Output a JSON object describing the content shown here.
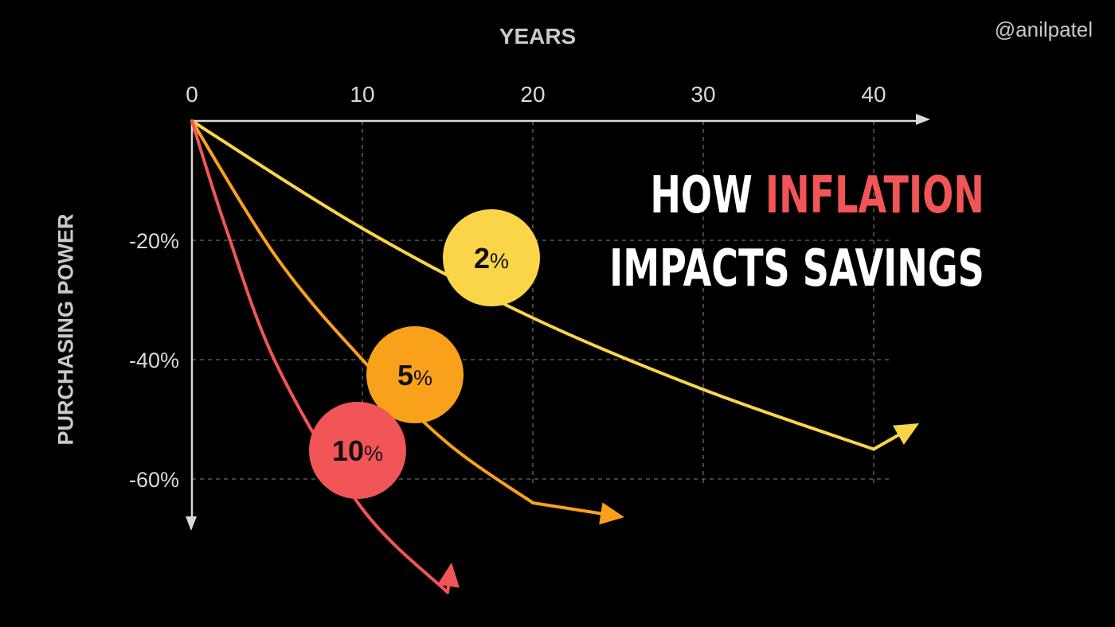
{
  "handle": "@anilpatel",
  "headline": {
    "line1_prefix": "HOW",
    "line1_accent": "INFLATION",
    "line2": "IMPACTS SAVINGS",
    "accent_color": "#f25557"
  },
  "chart_data": {
    "type": "line",
    "xlabel": "YEARS",
    "ylabel": "PURCHASING POWER",
    "x_ticks": [
      0,
      10,
      20,
      30,
      40
    ],
    "y_ticks": [
      -20,
      -40,
      -60
    ],
    "x_tick_labels": [
      "0",
      "10",
      "20",
      "30",
      "40"
    ],
    "y_tick_labels": [
      "-20%",
      "-40%",
      "-60%"
    ],
    "grid": true,
    "series": [
      {
        "name": "2%",
        "label_number": "2",
        "label_unit": "%",
        "color": "#fbd548",
        "x": [
          0,
          10,
          20,
          30,
          40
        ],
        "y": [
          0,
          -18,
          -33,
          -45,
          -55
        ]
      },
      {
        "name": "5%",
        "label_number": "5",
        "label_unit": "%",
        "color": "#f9a11b",
        "x": [
          0,
          5,
          10,
          15,
          20
        ],
        "y": [
          0,
          -23,
          -40,
          -54,
          -64
        ]
      },
      {
        "name": "10%",
        "label_number": "10",
        "label_unit": "%",
        "color": "#f25557",
        "x": [
          0,
          2,
          5,
          10,
          15
        ],
        "y": [
          0,
          -18,
          -41,
          -65,
          -79
        ]
      }
    ]
  }
}
